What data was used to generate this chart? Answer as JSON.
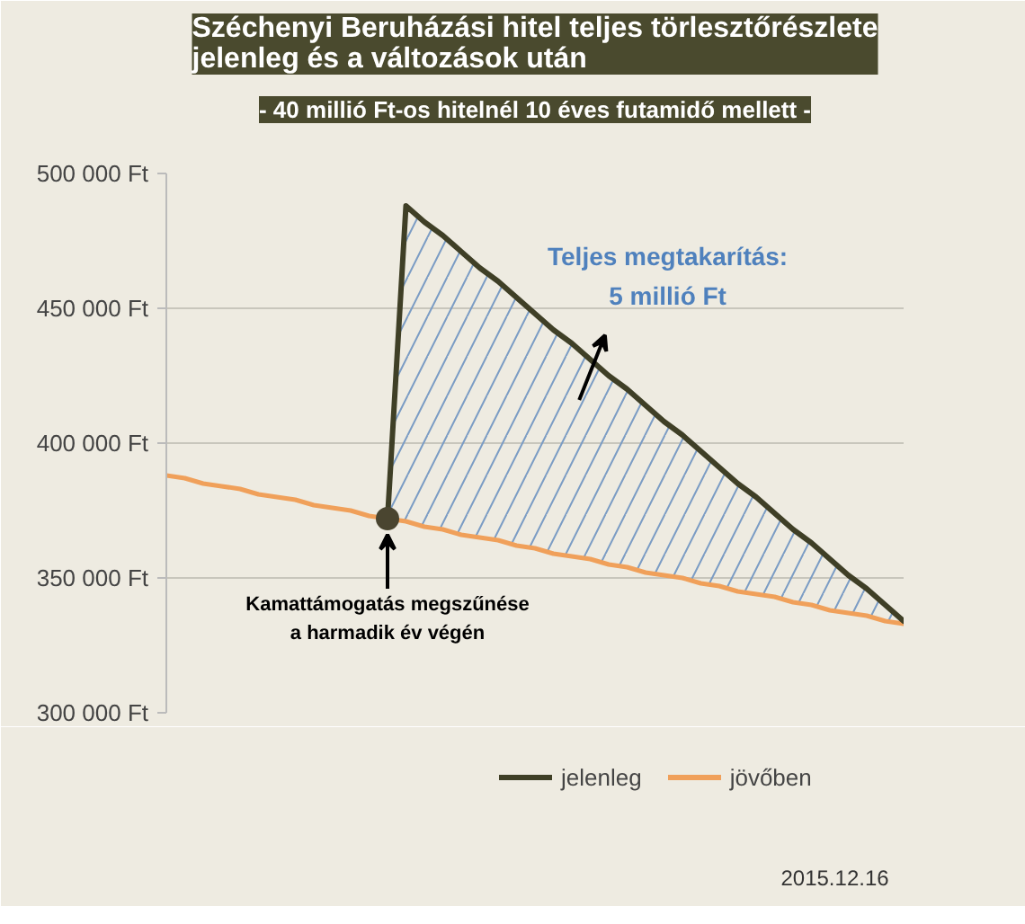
{
  "chart_data": {
    "type": "line",
    "title": "Széchenyi Beruházási hitel teljes törlesztőrészlete\njelenleg és a változások után",
    "subtitle": "- 40 millió Ft-os hitelnél 10 éves futamidő mellett -",
    "categories": [
      null,
      null,
      null,
      null,
      null,
      null,
      null,
      null,
      null,
      null,
      null,
      null,
      null,
      null,
      null,
      null,
      null,
      null,
      null,
      null,
      null,
      null,
      null,
      null,
      null,
      null,
      null,
      null,
      null,
      null,
      null,
      null,
      null,
      null,
      null,
      null,
      null,
      null,
      null,
      null,
      null
    ],
    "tick_labels": "y",
    "ylim": [
      300000,
      500000
    ],
    "yticks": [
      {
        "value": 300000,
        "label": "300 000 Ft"
      },
      {
        "value": 350000,
        "label": "350 000 Ft"
      },
      {
        "value": 400000,
        "label": "400 000 Ft"
      },
      {
        "value": 450000,
        "label": "450 000 Ft"
      },
      {
        "value": 500000,
        "label": "500 000 Ft"
      }
    ],
    "grid": "y",
    "legend": "bottom",
    "series": [
      {
        "name": "jelenleg",
        "color": "#3f3f26",
        "values": [
          null,
          null,
          null,
          null,
          null,
          null,
          null,
          null,
          null,
          null,
          null,
          null,
          372000,
          488000,
          482000,
          477000,
          471000,
          465000,
          460000,
          454000,
          448000,
          442000,
          437000,
          431000,
          425000,
          420000,
          414000,
          408000,
          403000,
          397000,
          391000,
          385000,
          380000,
          374000,
          368000,
          363000,
          357000,
          351000,
          346000,
          340000,
          334000
        ],
        "lower": [
          null,
          null,
          null,
          null,
          null,
          null,
          null,
          null,
          null,
          null,
          null,
          null,
          372000,
          371000,
          369000,
          368000,
          366000,
          365000,
          364000,
          362000,
          361000,
          359000,
          358000,
          357000,
          355000,
          354000,
          352000,
          351000,
          350000,
          348000,
          347000,
          345000,
          344000,
          343000,
          341000,
          340000,
          338000,
          337000,
          336000,
          334000,
          333000
        ],
        "upper": [
          null,
          null,
          null,
          null,
          null,
          null,
          null,
          null,
          null,
          null,
          null,
          null,
          372000,
          488000,
          482000,
          477000,
          471000,
          465000,
          460000,
          454000,
          448000,
          442000,
          437000,
          431000,
          425000,
          420000,
          414000,
          408000,
          403000,
          397000,
          391000,
          385000,
          380000,
          374000,
          368000,
          363000,
          357000,
          351000,
          346000,
          340000,
          334000
        ]
      },
      {
        "name": "jövőben",
        "color": "#f0a05a",
        "values": [
          388000,
          387000,
          385000,
          384000,
          383000,
          381000,
          380000,
          379000,
          377000,
          376000,
          375000,
          373000,
          372000,
          371000,
          369000,
          368000,
          366000,
          365000,
          364000,
          362000,
          361000,
          359000,
          358000,
          357000,
          355000,
          354000,
          352000,
          351000,
          350000,
          348000,
          347000,
          345000,
          344000,
          343000,
          341000,
          340000,
          338000,
          337000,
          336000,
          334000,
          333000
        ]
      }
    ],
    "annotations": [
      "Kamattámogatás megszűnése\na harmadik év végén",
      "Teljes megtakarítás:\n5 millió Ft",
      "2015.12.16"
    ]
  }
}
